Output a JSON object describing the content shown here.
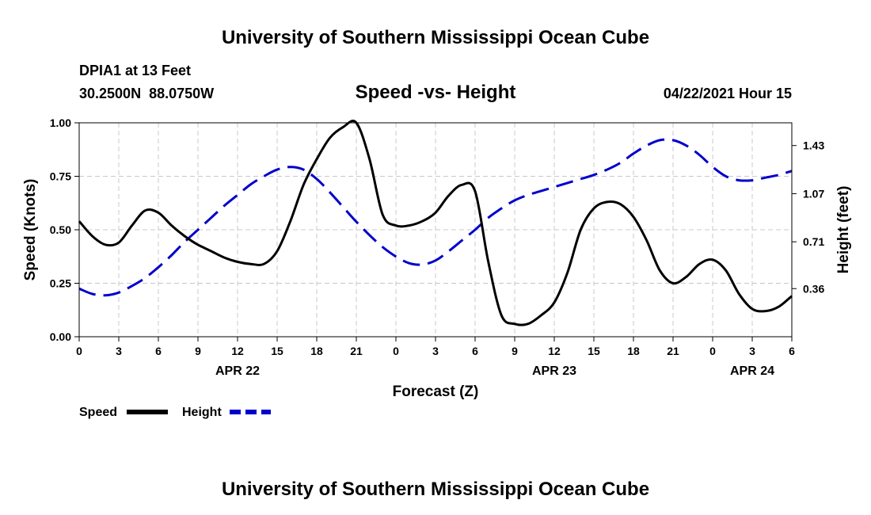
{
  "chart_data": {
    "type": "line",
    "header_title": "University of Southern Mississippi Ocean Cube",
    "footer_title": "University of Southern Mississippi Ocean Cube",
    "title": "Speed -vs- Height",
    "station": "DPIA1 at 13 Feet",
    "coordinates": "30.2500N  88.0750W",
    "timestamp": "04/22/2021 Hour 15",
    "xlabel": "Forecast (Z)",
    "ylabel": "Speed (Knots)",
    "y2label": "Height (feet)",
    "x_range": [
      0,
      54
    ],
    "ylim": [
      0,
      1
    ],
    "y2lim": [
      0.0,
      1.6
    ],
    "x_tick_positions": [
      0,
      3,
      6,
      9,
      12,
      15,
      18,
      21,
      24,
      27,
      30,
      33,
      36,
      39,
      42,
      45,
      48,
      51,
      54
    ],
    "x_tick_labels": [
      "0",
      "3",
      "6",
      "9",
      "12",
      "15",
      "18",
      "21",
      "0",
      "3",
      "6",
      "9",
      "12",
      "15",
      "18",
      "21",
      "0",
      "3",
      "6"
    ],
    "date_labels": [
      {
        "x": 12,
        "label": "APR 22"
      },
      {
        "x": 36,
        "label": "APR 23"
      },
      {
        "x": 51,
        "label": "APR 24"
      }
    ],
    "y_ticks": [
      0.0,
      0.25,
      0.5,
      0.75,
      1.0
    ],
    "y_tick_labels": [
      "0.00",
      "0.25",
      "0.50",
      "0.75",
      "1.00"
    ],
    "y2_ticks": [
      0.36,
      0.71,
      1.07,
      1.43
    ],
    "y2_tick_labels": [
      "0.36",
      "0.71",
      "1.07",
      "1.43"
    ],
    "grid": true,
    "legend": [
      {
        "name": "Speed",
        "color": "#000000",
        "style": "solid"
      },
      {
        "name": "Height",
        "color": "#0000cc",
        "style": "dashed"
      }
    ],
    "series": [
      {
        "name": "Speed",
        "axis": "left",
        "color": "#000000",
        "style": "solid",
        "x": [
          0,
          1,
          2,
          3,
          4,
          5,
          6,
          7,
          8,
          9,
          10,
          11,
          12,
          13,
          14,
          15,
          16,
          17,
          18,
          19,
          20,
          21,
          22,
          23,
          24,
          25,
          26,
          27,
          28,
          29,
          30,
          31,
          32,
          33,
          34,
          35,
          36,
          37,
          38,
          39,
          40,
          41,
          42,
          43,
          44,
          45,
          46,
          47,
          48,
          49,
          50,
          51,
          52,
          53,
          54
        ],
        "values": [
          0.54,
          0.47,
          0.43,
          0.44,
          0.52,
          0.59,
          0.58,
          0.52,
          0.47,
          0.43,
          0.4,
          0.37,
          0.35,
          0.34,
          0.34,
          0.4,
          0.54,
          0.71,
          0.83,
          0.93,
          0.98,
          1.0,
          0.83,
          0.57,
          0.52,
          0.52,
          0.54,
          0.58,
          0.66,
          0.71,
          0.68,
          0.35,
          0.1,
          0.06,
          0.06,
          0.1,
          0.16,
          0.3,
          0.5,
          0.6,
          0.63,
          0.62,
          0.56,
          0.45,
          0.31,
          0.25,
          0.28,
          0.34,
          0.36,
          0.31,
          0.2,
          0.13,
          0.12,
          0.14,
          0.19
        ]
      },
      {
        "name": "Height",
        "axis": "right",
        "color": "#0000cc",
        "style": "dashed",
        "x": [
          0,
          1,
          2,
          3,
          4,
          5,
          6,
          7,
          8,
          9,
          10,
          11,
          12,
          13,
          14,
          15,
          16,
          17,
          18,
          19,
          20,
          21,
          22,
          23,
          24,
          25,
          26,
          27,
          28,
          29,
          30,
          31,
          32,
          33,
          34,
          35,
          36,
          37,
          38,
          39,
          40,
          41,
          42,
          43,
          44,
          45,
          46,
          47,
          48,
          49,
          50,
          51,
          52,
          53,
          54
        ],
        "values": [
          0.36,
          0.32,
          0.31,
          0.33,
          0.38,
          0.44,
          0.52,
          0.61,
          0.71,
          0.8,
          0.89,
          0.98,
          1.06,
          1.14,
          1.2,
          1.25,
          1.27,
          1.25,
          1.18,
          1.08,
          0.97,
          0.86,
          0.76,
          0.67,
          0.6,
          0.55,
          0.54,
          0.57,
          0.64,
          0.72,
          0.8,
          0.89,
          0.96,
          1.02,
          1.06,
          1.09,
          1.12,
          1.15,
          1.18,
          1.21,
          1.25,
          1.3,
          1.37,
          1.43,
          1.47,
          1.47,
          1.43,
          1.36,
          1.27,
          1.2,
          1.17,
          1.17,
          1.19,
          1.21,
          1.24
        ]
      }
    ]
  }
}
